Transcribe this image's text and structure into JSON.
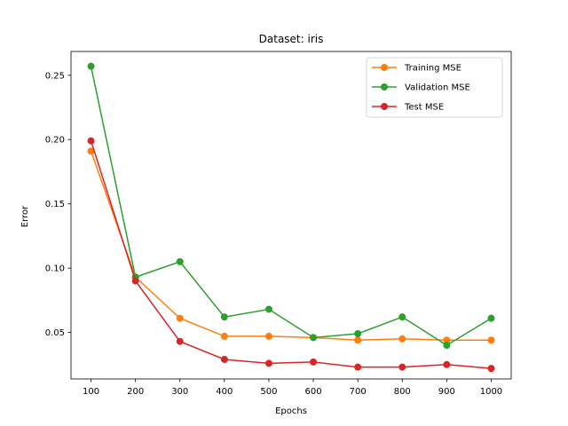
{
  "chart_data": {
    "type": "line",
    "title": "Dataset: iris",
    "xlabel": "Epochs",
    "ylabel": "Error",
    "x": [
      100,
      200,
      300,
      400,
      500,
      600,
      700,
      800,
      900,
      1000
    ],
    "xlim": [
      55,
      1045
    ],
    "ylim": [
      0.0138,
      0.2685
    ],
    "yticks": [
      0.05,
      0.1,
      0.15,
      0.2,
      0.25
    ],
    "ytick_labels": [
      "0.05",
      "0.10",
      "0.15",
      "0.20",
      "0.25"
    ],
    "xtick_labels": [
      "100",
      "200",
      "300",
      "400",
      "500",
      "600",
      "700",
      "800",
      "900",
      "1000"
    ],
    "grid": false,
    "legend_position": "top-right",
    "series": [
      {
        "name": "Training MSE",
        "color": "#ff7f0e",
        "values": [
          0.191,
          0.093,
          0.061,
          0.047,
          0.047,
          0.046,
          0.044,
          0.045,
          0.044,
          0.044
        ]
      },
      {
        "name": "Validation MSE",
        "color": "#2ca02c",
        "values": [
          0.257,
          0.093,
          0.105,
          0.062,
          0.068,
          0.046,
          0.049,
          0.062,
          0.04,
          0.061
        ]
      },
      {
        "name": "Test MSE",
        "color": "#d62728",
        "values": [
          0.199,
          0.09,
          0.043,
          0.029,
          0.026,
          0.027,
          0.023,
          0.023,
          0.025,
          0.022
        ]
      }
    ]
  }
}
